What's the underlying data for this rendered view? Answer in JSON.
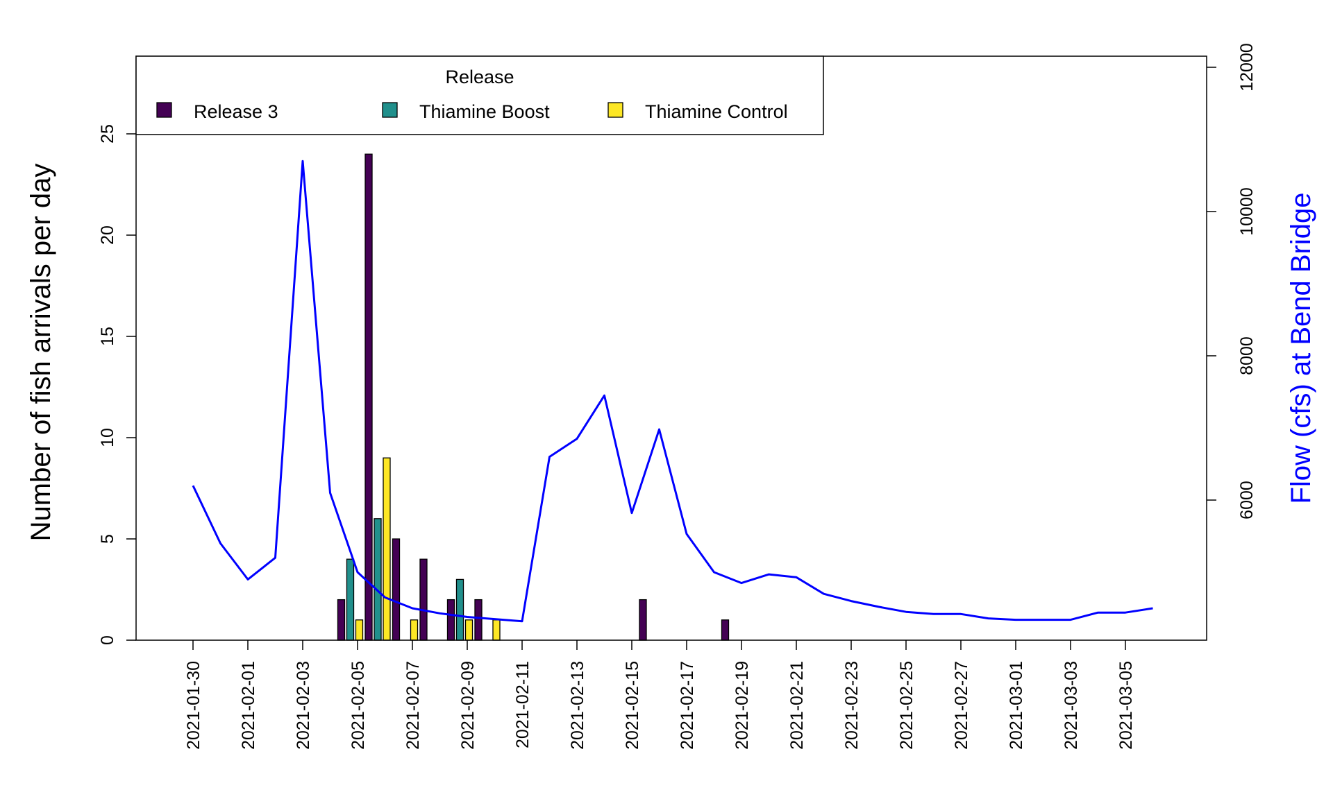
{
  "chart_data": {
    "type": "bar",
    "secondary_type": "line",
    "categories": [
      "2021-01-30",
      "2021-01-31",
      "2021-02-01",
      "2021-02-02",
      "2021-02-03",
      "2021-02-04",
      "2021-02-05",
      "2021-02-06",
      "2021-02-07",
      "2021-02-08",
      "2021-02-09",
      "2021-02-10",
      "2021-02-11",
      "2021-02-12",
      "2021-02-13",
      "2021-02-14",
      "2021-02-15",
      "2021-02-16",
      "2021-02-17",
      "2021-02-18",
      "2021-02-19",
      "2021-02-20",
      "2021-02-21",
      "2021-02-22",
      "2021-02-23",
      "2021-02-24",
      "2021-02-25",
      "2021-02-26",
      "2021-02-27",
      "2021-02-28",
      "2021-03-01",
      "2021-03-02",
      "2021-03-03",
      "2021-03-04",
      "2021-03-05",
      "2021-03-06"
    ],
    "x_tick_labels": [
      "2021-01-30",
      "2021-02-01",
      "2021-02-03",
      "2021-02-05",
      "2021-02-07",
      "2021-02-09",
      "2021-02-11",
      "2021-02-13",
      "2021-02-15",
      "2021-02-17",
      "2021-02-19",
      "2021-02-21",
      "2021-02-23",
      "2021-02-25",
      "2021-02-27",
      "2021-03-01",
      "2021-03-03",
      "2021-03-05"
    ],
    "series": [
      {
        "name": "Release 3",
        "color": "#440154",
        "points": [
          [
            "2021-02-02",
            2
          ],
          [
            "2021-02-03",
            24
          ],
          [
            "2021-02-04",
            5
          ],
          [
            "2021-02-05",
            4
          ],
          [
            "2021-02-06",
            2
          ],
          [
            "2021-02-07",
            2
          ],
          [
            "2021-02-13",
            2
          ],
          [
            "2021-02-16",
            1
          ]
        ]
      },
      {
        "name": "Thiamine Boost",
        "color": "#21908C",
        "points": [
          [
            "2021-02-02",
            4
          ],
          [
            "2021-02-03",
            6
          ],
          [
            "2021-02-06",
            3
          ]
        ]
      },
      {
        "name": "Thiamine Control",
        "color": "#FDE725",
        "points": [
          [
            "2021-02-02",
            1
          ],
          [
            "2021-02-03",
            9
          ],
          [
            "2021-02-04",
            1
          ],
          [
            "2021-02-06",
            1
          ],
          [
            "2021-02-07",
            1
          ]
        ]
      }
    ],
    "flow": {
      "color": "#0000FF",
      "values": [
        6200,
        5400,
        4900,
        5200,
        10700,
        6100,
        5000,
        4650,
        4500,
        4430,
        4380,
        4350,
        4320,
        6600,
        6850,
        7450,
        5820,
        6980,
        5530,
        5000,
        4850,
        4970,
        4930,
        4700,
        4600,
        4520,
        4450,
        4420,
        4420,
        4360,
        4340,
        4340,
        4340,
        4440,
        4440,
        4500
      ]
    },
    "title": "",
    "xlabel": "",
    "ylabel": "Number of fish arrivals per day",
    "y2label": "Flow (cfs) at Bend Bridge",
    "ylim": [
      0,
      25
    ],
    "yticks": [
      0,
      5,
      10,
      15,
      20,
      25
    ],
    "y2ticks": [
      6000,
      8000,
      10000,
      12000
    ],
    "legend": {
      "title": "Release",
      "position": "top-left"
    },
    "grid": false
  }
}
